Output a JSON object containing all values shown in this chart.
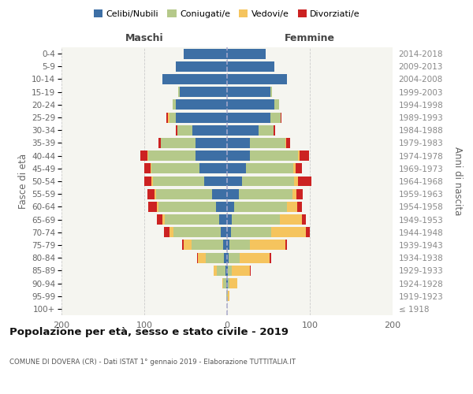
{
  "age_groups": [
    "100+",
    "95-99",
    "90-94",
    "85-89",
    "80-84",
    "75-79",
    "70-74",
    "65-69",
    "60-64",
    "55-59",
    "50-54",
    "45-49",
    "40-44",
    "35-39",
    "30-34",
    "25-29",
    "20-24",
    "15-19",
    "10-14",
    "5-9",
    "0-4"
  ],
  "birth_years": [
    "≤ 1918",
    "1919-1923",
    "1924-1928",
    "1929-1933",
    "1934-1938",
    "1939-1943",
    "1944-1948",
    "1949-1953",
    "1954-1958",
    "1959-1963",
    "1964-1968",
    "1969-1973",
    "1974-1978",
    "1979-1983",
    "1984-1988",
    "1989-1993",
    "1994-1998",
    "1999-2003",
    "2004-2008",
    "2009-2013",
    "2014-2018"
  ],
  "males_celibi": [
    0,
    0,
    1,
    2,
    4,
    5,
    8,
    10,
    13,
    18,
    28,
    33,
    38,
    38,
    42,
    62,
    62,
    57,
    78,
    62,
    52
  ],
  "males_coniugati": [
    0,
    1,
    4,
    10,
    22,
    38,
    57,
    65,
    70,
    68,
    62,
    58,
    57,
    42,
    18,
    8,
    4,
    2,
    0,
    0,
    0
  ],
  "males_vedovi": [
    0,
    0,
    1,
    4,
    9,
    9,
    5,
    3,
    2,
    2,
    1,
    1,
    1,
    0,
    0,
    1,
    0,
    0,
    0,
    0,
    0
  ],
  "males_divorziati": [
    0,
    0,
    0,
    0,
    1,
    2,
    6,
    7,
    10,
    8,
    9,
    8,
    9,
    3,
    2,
    2,
    0,
    0,
    0,
    0,
    0
  ],
  "females_nubili": [
    0,
    0,
    1,
    1,
    2,
    3,
    5,
    6,
    9,
    14,
    18,
    23,
    28,
    28,
    38,
    52,
    57,
    52,
    72,
    57,
    47
  ],
  "females_coniugate": [
    0,
    1,
    2,
    5,
    13,
    25,
    48,
    58,
    63,
    65,
    63,
    57,
    58,
    42,
    18,
    13,
    6,
    2,
    0,
    0,
    0
  ],
  "females_vedove": [
    0,
    2,
    9,
    22,
    36,
    42,
    42,
    26,
    13,
    5,
    5,
    3,
    2,
    1,
    0,
    0,
    0,
    0,
    0,
    0,
    0
  ],
  "females_divorziate": [
    0,
    0,
    0,
    1,
    2,
    2,
    5,
    5,
    5,
    7,
    16,
    7,
    11,
    5,
    2,
    1,
    0,
    0,
    0,
    0,
    0
  ],
  "color_celibi": "#3d6fa5",
  "color_coniugati": "#b5c98a",
  "color_vedovi": "#f5c45e",
  "color_divorziati": "#cc2222",
  "xlim": 200,
  "title": "Popolazione per età, sesso e stato civile - 2019",
  "subtitle": "COMUNE DI DOVERA (CR) - Dati ISTAT 1° gennaio 2019 - Elaborazione TUTTITALIA.IT",
  "ylabel_left": "Fasce di età",
  "ylabel_right": "Anni di nascita",
  "legend_labels": [
    "Celibi/Nubili",
    "Coniugati/e",
    "Vedovi/e",
    "Divorziati/e"
  ],
  "label_maschi": "Maschi",
  "label_femmine": "Femmine",
  "bg_color": "#f5f5f0"
}
